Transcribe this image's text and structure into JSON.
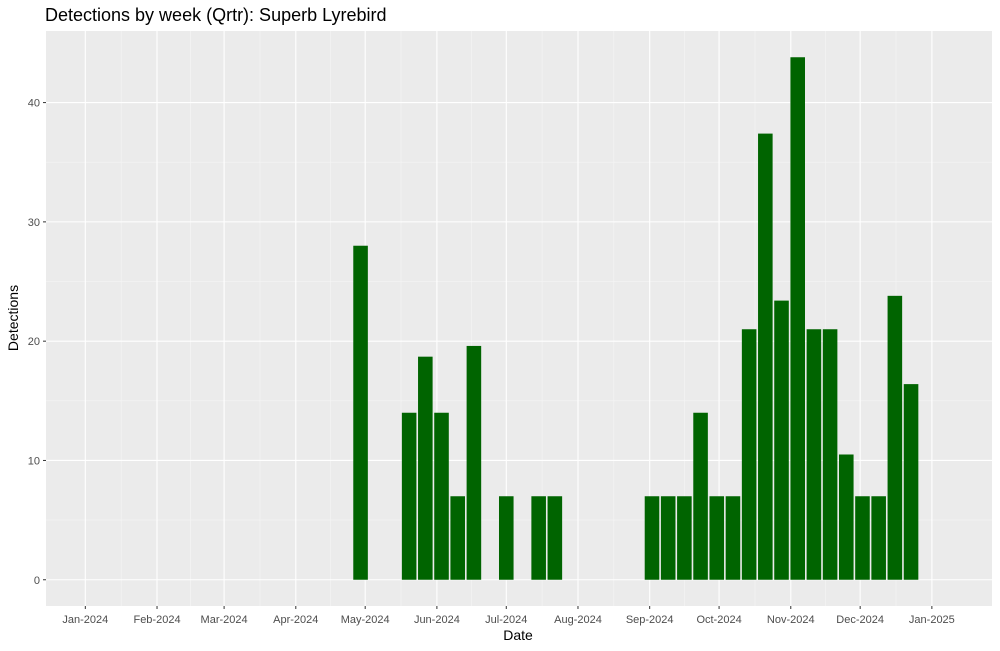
{
  "chart_data": {
    "type": "bar",
    "title": "Detections by week (Qrtr): Superb Lyrebird",
    "xlabel": "Date",
    "ylabel": "Detections",
    "xlim": [
      "2023-12-15",
      "2025-01-27"
    ],
    "ylim": [
      -2.2,
      46
    ],
    "x_ticks": [
      "2024-01-01",
      "2024-02-01",
      "2024-03-01",
      "2024-04-01",
      "2024-05-01",
      "2024-06-01",
      "2024-07-01",
      "2024-08-01",
      "2024-09-01",
      "2024-10-01",
      "2024-11-01",
      "2024-12-01",
      "2025-01-01"
    ],
    "x_tick_labels": [
      "Jan-2024",
      "Feb-2024",
      "Mar-2024",
      "Apr-2024",
      "May-2024",
      "Jun-2024",
      "Jul-2024",
      "Aug-2024",
      "Sep-2024",
      "Oct-2024",
      "Nov-2024",
      "Dec-2024",
      "Jan-2025"
    ],
    "y_ticks": [
      0,
      10,
      20,
      30,
      40
    ],
    "y_tick_labels": [
      "0",
      "10",
      "20",
      "30",
      "40"
    ],
    "grid": true,
    "colors": {
      "bar": "#006400",
      "panel": "#EBEBEB",
      "grid_major": "#FFFFFF",
      "grid_minor": "#F5F5F5",
      "tick_label": "#4D4D4D"
    },
    "points": [
      {
        "week": "2024-04-29",
        "value": 28
      },
      {
        "week": "2024-05-20",
        "value": 14
      },
      {
        "week": "2024-05-27",
        "value": 18.7
      },
      {
        "week": "2024-06-03",
        "value": 14
      },
      {
        "week": "2024-06-10",
        "value": 7
      },
      {
        "week": "2024-06-17",
        "value": 19.6
      },
      {
        "week": "2024-07-01",
        "value": 7
      },
      {
        "week": "2024-07-15",
        "value": 7
      },
      {
        "week": "2024-07-22",
        "value": 7
      },
      {
        "week": "2024-09-02",
        "value": 7
      },
      {
        "week": "2024-09-09",
        "value": 7
      },
      {
        "week": "2024-09-16",
        "value": 7
      },
      {
        "week": "2024-09-23",
        "value": 14
      },
      {
        "week": "2024-09-30",
        "value": 7
      },
      {
        "week": "2024-10-07",
        "value": 7
      },
      {
        "week": "2024-10-14",
        "value": 21
      },
      {
        "week": "2024-10-21",
        "value": 37.4
      },
      {
        "week": "2024-10-28",
        "value": 23.4
      },
      {
        "week": "2024-11-04",
        "value": 43.8
      },
      {
        "week": "2024-11-11",
        "value": 21
      },
      {
        "week": "2024-11-18",
        "value": 21
      },
      {
        "week": "2024-11-25",
        "value": 10.5
      },
      {
        "week": "2024-12-02",
        "value": 7
      },
      {
        "week": "2024-12-09",
        "value": 7
      },
      {
        "week": "2024-12-16",
        "value": 23.8
      },
      {
        "week": "2024-12-23",
        "value": 16.4
      }
    ]
  }
}
